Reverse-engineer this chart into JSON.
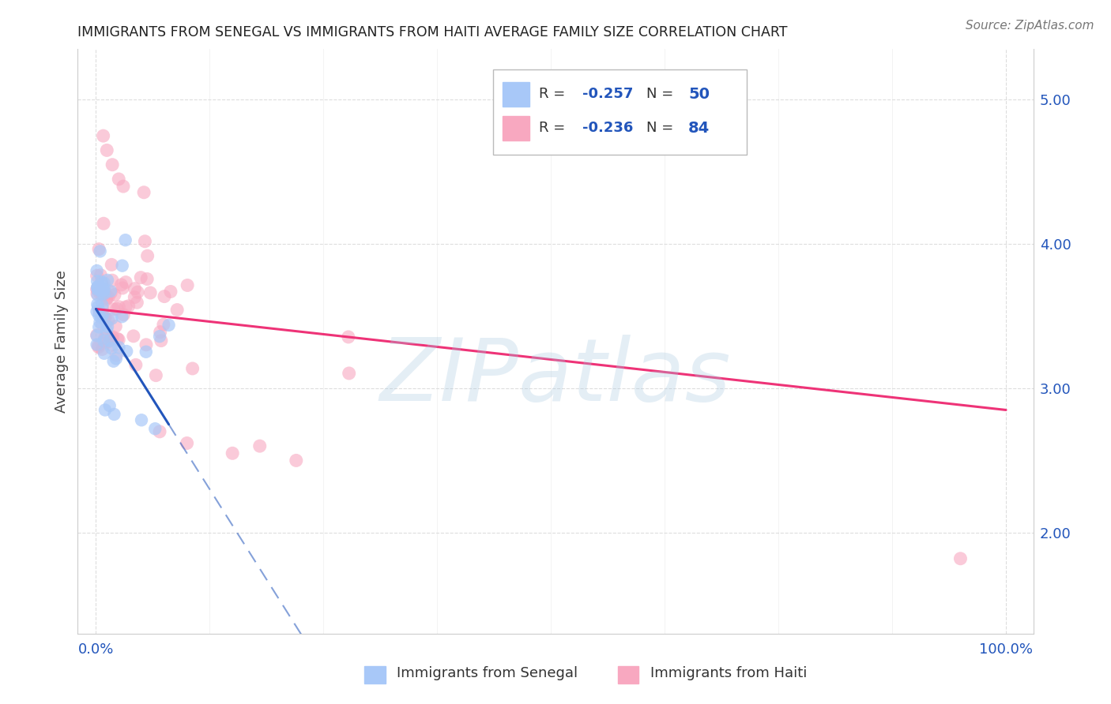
{
  "title": "IMMIGRANTS FROM SENEGAL VS IMMIGRANTS FROM HAITI AVERAGE FAMILY SIZE CORRELATION CHART",
  "source": "Source: ZipAtlas.com",
  "ylabel": "Average Family Size",
  "right_yticks": [
    2.0,
    3.0,
    4.0,
    5.0
  ],
  "senegal_R": -0.257,
  "senegal_N": 50,
  "haiti_R": -0.236,
  "haiti_N": 84,
  "senegal_color": "#A8C8F8",
  "haiti_color": "#F8A8C0",
  "senegal_line_color": "#2255BB",
  "haiti_line_color": "#EE3377",
  "watermark": "ZIPatlas",
  "watermark_color": "#A8C8E0",
  "legend_label_senegal": "Immigrants from Senegal",
  "legend_label_haiti": "Immigrants from Haiti",
  "title_color": "#222222",
  "source_color": "#777777",
  "tick_color": "#2255BB",
  "ylabel_color": "#444444",
  "grid_color": "#DDDDDD",
  "legend_text_color": "#333333",
  "legend_num_color": "#2255BB"
}
